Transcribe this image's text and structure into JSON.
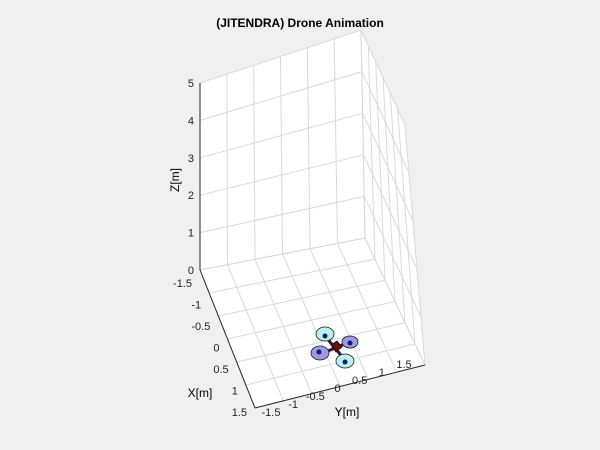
{
  "figure": {
    "background": "#f0f0f0",
    "axes_background": "#ffffff",
    "grid_color": "#d9d9d9",
    "axis_color": "#262626"
  },
  "chart_data": {
    "type": "3d-plot",
    "title": "(JITENDRA) Drone Animation",
    "xlabel": "X[m]",
    "ylabel": "Y[m]",
    "zlabel": "Z[m]",
    "grid": true,
    "xlim": [
      -1.5,
      1.5
    ],
    "ylim": [
      -1.5,
      1.5
    ],
    "zlim": [
      0,
      5
    ],
    "x_ticks": [
      "-1.5",
      "-1",
      "-0.5",
      "0",
      "0.5",
      "1",
      "1.5"
    ],
    "y_ticks": [
      "-1.5",
      "-1",
      "-0.5",
      "0",
      "0.5",
      "1",
      "1.5"
    ],
    "z_ticks": [
      "0",
      "1",
      "2",
      "3",
      "4",
      "5"
    ],
    "drone": {
      "position": [
        1.0,
        -0.35,
        0.0
      ],
      "body_color": "#6b0f0f",
      "rotor_colors": [
        "#b8f2f2",
        "#9a9ae6",
        "#9a9ae6",
        "#b8f2f2"
      ]
    }
  }
}
